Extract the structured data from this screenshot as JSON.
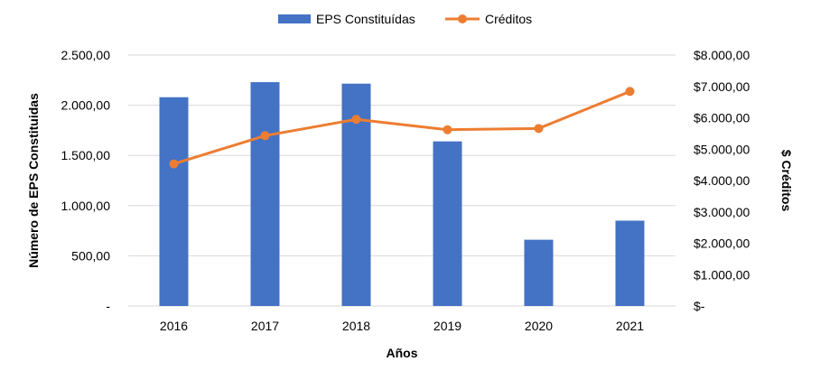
{
  "chart_data": {
    "type": "bar",
    "categories": [
      "2016",
      "2017",
      "2018",
      "2019",
      "2020",
      "2021"
    ],
    "series": [
      {
        "name": "EPS Constituídas",
        "type": "bar",
        "axis": "left",
        "color": "#4472c4",
        "values": [
          2080,
          2230,
          2215,
          1640,
          660,
          850
        ]
      },
      {
        "name": "Créditos",
        "type": "line",
        "axis": "right",
        "color": "#ed7d31",
        "values": [
          4530,
          5430,
          5950,
          5620,
          5660,
          6840
        ]
      }
    ],
    "xlabel": "Años",
    "ylabel": "Número de EPS Constituidas",
    "y2label": "$ Créditos",
    "ylim": [
      0,
      2500
    ],
    "y2lim": [
      0,
      8000
    ],
    "yticks": [
      "-",
      "500,00",
      "1.000,00",
      "1.500,00",
      "2.000,00",
      "2.500,00"
    ],
    "y2ticks": [
      "$-",
      "$1.000,00",
      "$2.000,00",
      "$3.000,00",
      "$4.000,00",
      "$5.000,00",
      "$6.000,00",
      "$7.000,00",
      "$8.000,00"
    ],
    "grid": true,
    "legend": "top-center"
  }
}
